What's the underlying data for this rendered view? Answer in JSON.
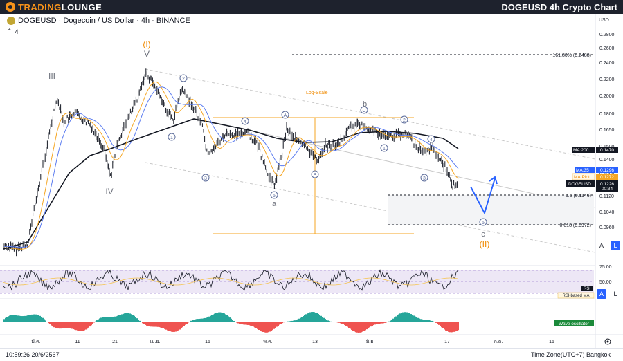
{
  "header": {
    "brand_first": "TRADING",
    "brand_second": "LOUNGE",
    "title": "DOGEUSD 4h Crypto Chart"
  },
  "legend": {
    "symbol_line": "DOGEUSD · Dogecoin / US Dollar · 4h · BINANCE",
    "indicators_count": "4"
  },
  "price_axis": {
    "currency": "USD",
    "ticks": [
      "0.2800",
      "0.2600",
      "0.2400",
      "0.2200",
      "0.2000",
      "0.1800",
      "0.1650",
      "0.1500",
      "0.1400",
      "0.1300",
      "0.1200",
      "0.1120",
      "0.1040",
      "0.0960"
    ]
  },
  "price_labels": {
    "ma200_name": "MA:200",
    "ma200_value": "0.1470",
    "ma35_name": "MA:35",
    "ma35_value": "0.1296",
    "maplot_name": "MA:Plot",
    "maplot_value": "0.1272",
    "symbol_name": "DOGEUSD",
    "symbol_value": "0.1226",
    "countdown": "00:34"
  },
  "fib": {
    "ext_label": "161.80% (0.2488)",
    "half_label": "0.5 (0.1146)",
    "golden_label": "0.618 (0.0972)",
    "log_scale": "Log-Scale"
  },
  "waves": {
    "primary_1": "(I)",
    "primary_2": "(II)",
    "minor_V": "V",
    "minor_III": "III",
    "minor_IV": "IV",
    "a": "a",
    "b": "b",
    "c": "c",
    "n1": "1",
    "n2": "2",
    "n3": "3",
    "n4": "4",
    "n5": "5",
    "A": "A",
    "B": "B",
    "C": "C"
  },
  "rsi": {
    "ticks": [
      "75.00",
      "50.00"
    ],
    "label": "RSI",
    "based_ma": "RSI-based MA"
  },
  "wave_osc": {
    "label": "Wave oscillator"
  },
  "time_axis": [
    "มี.ค.",
    "11",
    "21",
    "เม.ย.",
    "15",
    "พ.ค.",
    "13",
    "มิ.ย.",
    "17",
    "ก.ค.",
    "15"
  ],
  "buttons": {
    "auto": "A",
    "log": "L"
  },
  "footer": {
    "clock": "10:59:26 20/6/2567",
    "timezone": "Time Zone(UTC+7) Bangkok"
  },
  "colors": {
    "price": "#131722",
    "ma200": "#131722",
    "ma35": "#5b7cf0",
    "maplot": "#f5a623",
    "wave_primary": "#f08a00",
    "wave_circle": "#5b6b9a",
    "rsi_band": "#7e57c2",
    "osc_up": "#26a69a",
    "osc_down": "#ef5350",
    "accent": "#2962ff"
  }
}
